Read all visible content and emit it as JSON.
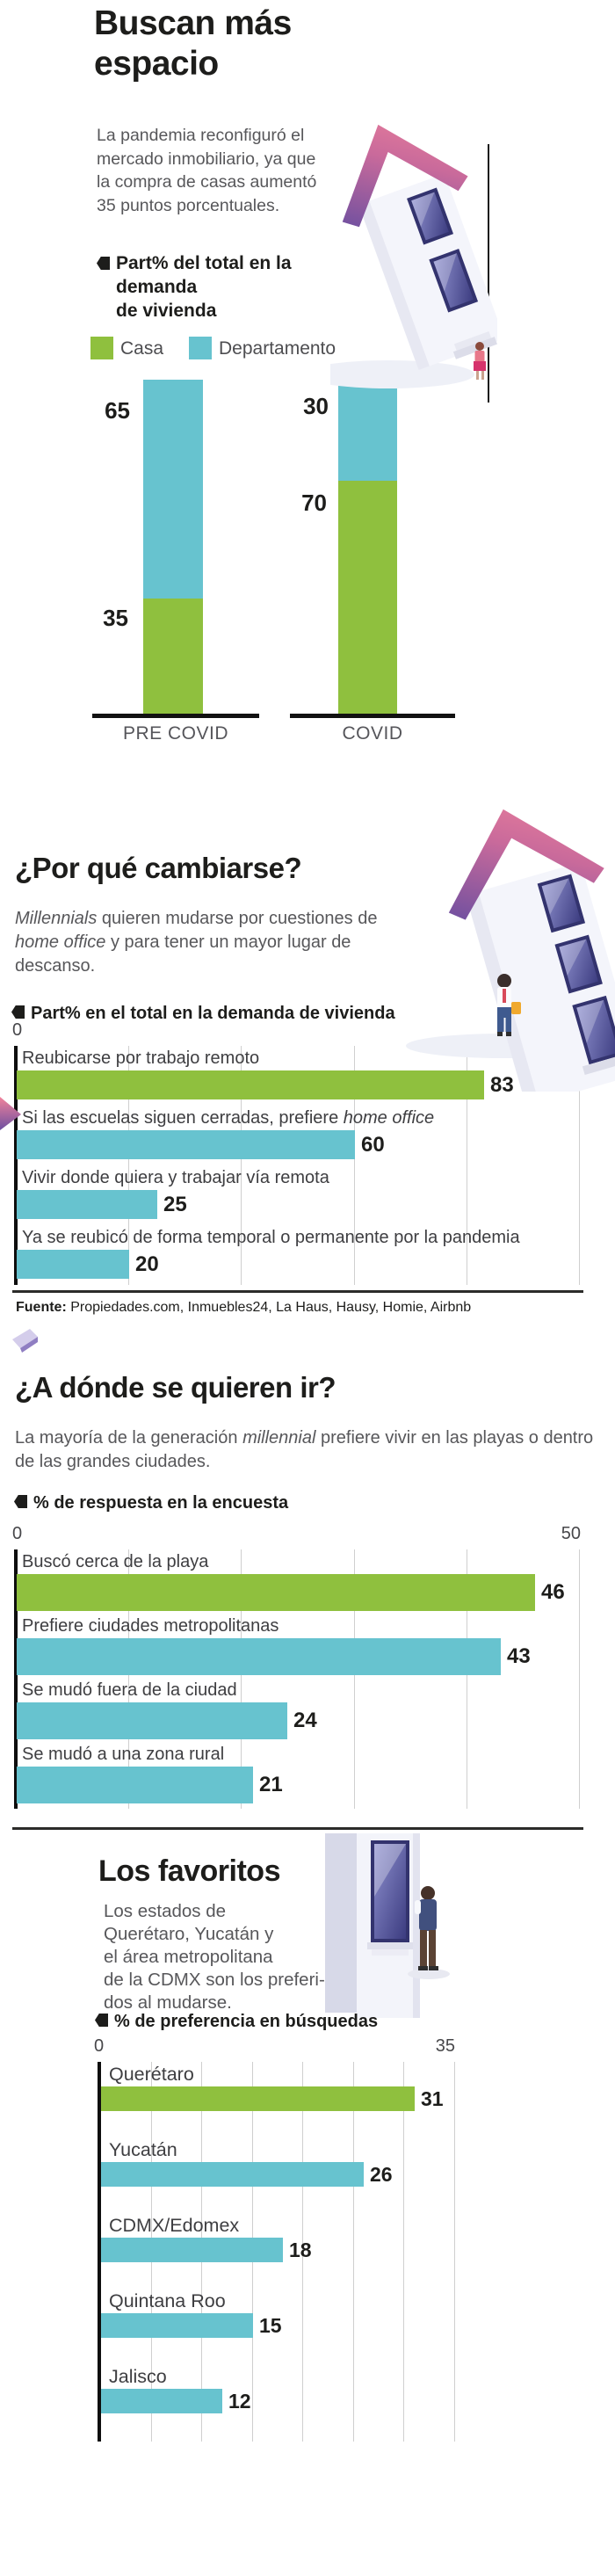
{
  "colors": {
    "green": "#8fc03e",
    "teal": "#67c3cf",
    "ink": "#1d1d1b",
    "grid": "#cfcfcf"
  },
  "sec1": {
    "title_line1": "Buscan más",
    "title_line2": "espacio",
    "intro": "La pandemia reconfiguró el mercado inmobiliario, ya que la compra de casas aumentó 35 puntos porcentuales.",
    "kicker_lines": [
      "Part% del total en la",
      "demanda",
      "de vivienda"
    ],
    "legend": [
      {
        "label": "Casa",
        "color": "#8fc03e"
      },
      {
        "label": "Departamento",
        "color": "#67c3cf"
      }
    ]
  },
  "sec2": {
    "heading": "¿Por qué cambiarse?",
    "intro_rich": [
      {
        "t": "Millennials",
        "i": 1
      },
      {
        "t": " quieren mudarse por cuestiones de ",
        "i": 0
      },
      {
        "t": "home office",
        "i": 1
      },
      {
        "t": " y para tener un mayor lugar de descanso.",
        "i": 0
      }
    ],
    "kicker": "Part% en el total en la demanda de vivienda",
    "tick_min": "0",
    "tick_max": "100"
  },
  "source": {
    "label": "Fuente:",
    "text": " Propiedades.com, Inmuebles24, La Haus, Hausy, Homie, Airbnb"
  },
  "sec3": {
    "heading": "¿A dónde se quieren ir?",
    "intro_rich": [
      {
        "t": "La mayoría de la generación ",
        "i": 0
      },
      {
        "t": "millennial",
        "i": 1
      },
      {
        "t": " prefiere vivir en las playas o dentro de las grandes ciudades.",
        "i": 0
      }
    ],
    "kicker": "% de respuesta en la encuesta",
    "tick_min": "0",
    "tick_max": "50"
  },
  "sec4": {
    "heading": "Los favoritos",
    "intro_lines": [
      "Los estados de",
      "Querétaro, Yucatán y",
      "el área metropolitana",
      "de la CDMX son los preferi-",
      "dos al mudarse."
    ],
    "kicker": "% de preferencia en búsquedas",
    "tick_min": "0",
    "tick_max": "35"
  },
  "chart_data": [
    {
      "id": "demanda-vivienda",
      "type": "bar",
      "subtype": "stacked-column",
      "title": "Part% del total en la demanda de vivienda",
      "categories": [
        "PRE COVID",
        "COVID"
      ],
      "series": [
        {
          "name": "Departamento",
          "color": "#67c3cf",
          "values": [
            65,
            30
          ]
        },
        {
          "name": "Casa",
          "color": "#8fc03e",
          "values": [
            35,
            70
          ]
        }
      ],
      "ylim": [
        0,
        100
      ],
      "grid": false,
      "legend_position": "top"
    },
    {
      "id": "razones-cambio",
      "type": "bar",
      "subtype": "horizontal",
      "title": "Part% en el total en la demanda de vivienda",
      "xlim": [
        0,
        100
      ],
      "ticks": [
        0,
        100
      ],
      "grid": true,
      "rows": [
        {
          "label_rich": [
            {
              "t": "Reubicarse por trabajo remoto",
              "i": 0
            }
          ],
          "value": 83,
          "color": "#8fc03e"
        },
        {
          "label_rich": [
            {
              "t": "Si las escuelas siguen cerradas, prefiere ",
              "i": 0
            },
            {
              "t": "home office",
              "i": 1
            }
          ],
          "value": 60,
          "color": "#67c3cf"
        },
        {
          "label_rich": [
            {
              "t": "Vivir donde quiera y trabajar vía remota",
              "i": 0
            }
          ],
          "value": 25,
          "color": "#67c3cf"
        },
        {
          "label_rich": [
            {
              "t": "Ya se reubicó de forma temporal o permanente por la pandemia",
              "i": 0
            }
          ],
          "value": 20,
          "color": "#67c3cf"
        }
      ]
    },
    {
      "id": "destinos",
      "type": "bar",
      "subtype": "horizontal",
      "title": "% de respuesta en la encuesta",
      "xlim": [
        0,
        50
      ],
      "ticks": [
        0,
        50
      ],
      "grid": true,
      "rows": [
        {
          "label_rich": [
            {
              "t": "Buscó cerca de la playa",
              "i": 0
            }
          ],
          "value": 46,
          "color": "#8fc03e"
        },
        {
          "label_rich": [
            {
              "t": "Prefiere ciudades metropolitanas",
              "i": 0
            }
          ],
          "value": 43,
          "color": "#67c3cf"
        },
        {
          "label_rich": [
            {
              "t": "Se mudó fuera de la ciudad",
              "i": 0
            }
          ],
          "value": 24,
          "color": "#67c3cf"
        },
        {
          "label_rich": [
            {
              "t": "Se mudó a una zona rural",
              "i": 0
            }
          ],
          "value": 21,
          "color": "#67c3cf"
        }
      ]
    },
    {
      "id": "estados-favoritos",
      "type": "bar",
      "subtype": "horizontal",
      "title": "% de preferencia en búsquedas",
      "xlim": [
        0,
        35
      ],
      "ticks": [
        0,
        35
      ],
      "grid": true,
      "rows": [
        {
          "label_rich": [
            {
              "t": "Querétaro",
              "i": 0
            }
          ],
          "value": 31,
          "color": "#8fc03e"
        },
        {
          "label_rich": [
            {
              "t": "Yucatán",
              "i": 0
            }
          ],
          "value": 26,
          "color": "#67c3cf"
        },
        {
          "label_rich": [
            {
              "t": "CDMX/Edomex",
              "i": 0
            }
          ],
          "value": 18,
          "color": "#67c3cf"
        },
        {
          "label_rich": [
            {
              "t": "Quintana Roo",
              "i": 0
            }
          ],
          "value": 15,
          "color": "#67c3cf"
        },
        {
          "label_rich": [
            {
              "t": "Jalisco",
              "i": 0
            }
          ],
          "value": 12,
          "color": "#67c3cf"
        }
      ]
    }
  ]
}
